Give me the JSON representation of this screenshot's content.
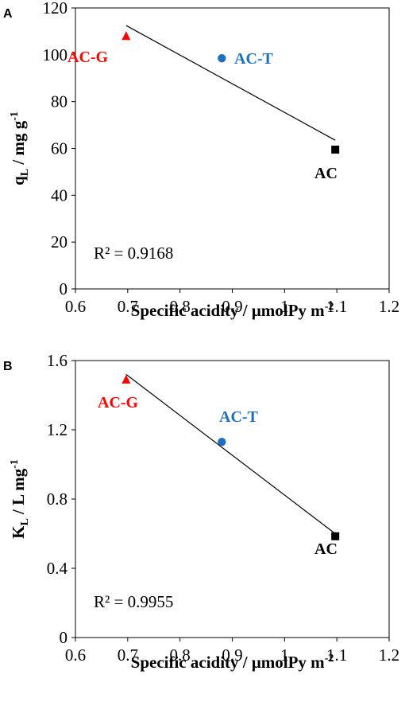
{
  "chart_data": [
    {
      "panel": "A",
      "type": "scatter",
      "xlabel": "Specific acidity / μmolPy m",
      "xlabel_sup": "-2",
      "ylabel_main": "q",
      "ylabel_sub": "L",
      "ylabel_rest": " / mg g",
      "ylabel_sup": "-1",
      "xlim": [
        0.6,
        1.2
      ],
      "ylim": [
        0,
        120
      ],
      "xticks": [
        "0.6",
        "0.7",
        "0.8",
        "0.9",
        "1",
        "1.1",
        "1.2"
      ],
      "yticks": [
        "0",
        "20",
        "40",
        "60",
        "80",
        "100",
        "120"
      ],
      "points": [
        {
          "label": "AC-G",
          "x": 0.697,
          "y": 108,
          "marker": "triangle",
          "color": "#ff0000"
        },
        {
          "label": "AC-T",
          "x": 0.88,
          "y": 98.5,
          "marker": "circle",
          "color": "#1f6fbf"
        },
        {
          "label": "AC",
          "x": 1.097,
          "y": 59.5,
          "marker": "square",
          "color": "#000000"
        }
      ],
      "trendline": {
        "x": [
          0.697,
          1.097
        ],
        "y": [
          112.5,
          63.5
        ]
      },
      "r2_text": "R² = 0.9168"
    },
    {
      "panel": "B",
      "type": "scatter",
      "xlabel": "Specific acidity / μmolPy m",
      "xlabel_sup": "-2",
      "ylabel_main": "K",
      "ylabel_sub": "L",
      "ylabel_rest": " / L mg",
      "ylabel_sup": "-1",
      "xlim": [
        0.6,
        1.2
      ],
      "ylim": [
        0,
        1.6
      ],
      "xticks": [
        "0.6",
        "0.7",
        "0.8",
        "0.9",
        "1",
        "1.1",
        "1.2"
      ],
      "yticks": [
        "0",
        "0.4",
        "0.8",
        "1.2",
        "1.6"
      ],
      "points": [
        {
          "label": "AC-G",
          "x": 0.697,
          "y": 1.49,
          "marker": "triangle",
          "color": "#ff0000"
        },
        {
          "label": "AC-T",
          "x": 0.88,
          "y": 1.13,
          "marker": "circle",
          "color": "#1f6fbf"
        },
        {
          "label": "AC",
          "x": 1.097,
          "y": 0.585,
          "marker": "square",
          "color": "#000000"
        }
      ],
      "trendline": {
        "x": [
          0.697,
          1.097
        ],
        "y": [
          1.52,
          0.6
        ]
      },
      "r2_text": "R² = 0.9955"
    }
  ]
}
